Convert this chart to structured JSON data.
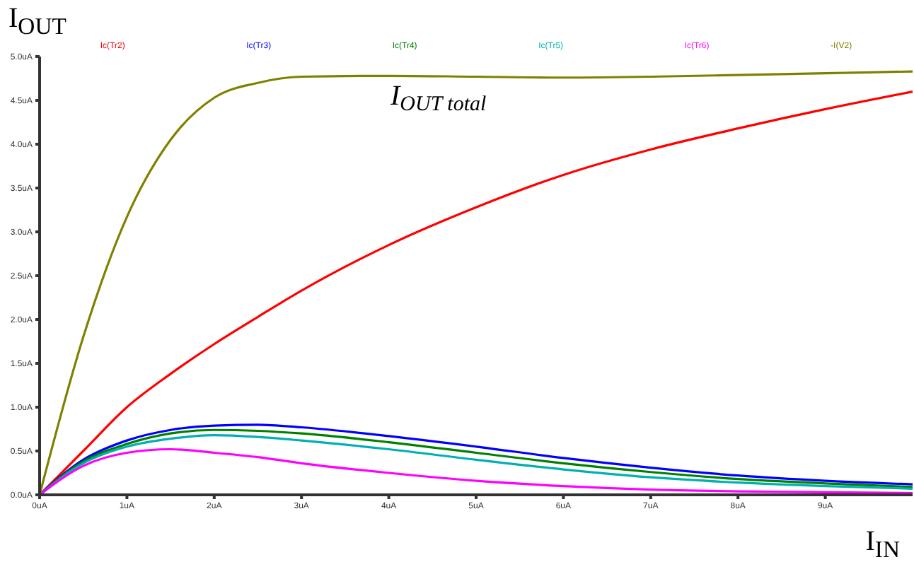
{
  "chart_data": {
    "type": "line",
    "ylabel": "I$_{OUT}$",
    "xlabel": "I$_{IN}$",
    "annotations": [
      "I$_{OUT total}$"
    ],
    "x": [
      0,
      0.5,
      1,
      1.5,
      2,
      2.5,
      3,
      4,
      5,
      6,
      7,
      8,
      9,
      10
    ],
    "series": [
      {
        "name": "Ic(Tr2)",
        "color": "#ff0000",
        "values": [
          0,
          0.5,
          1.0,
          1.38,
          1.72,
          2.03,
          2.33,
          2.85,
          3.28,
          3.65,
          3.94,
          4.18,
          4.4,
          4.6
        ]
      },
      {
        "name": "Ic(Tr3)",
        "color": "#0000ff",
        "values": [
          0,
          0.4,
          0.62,
          0.74,
          0.79,
          0.8,
          0.77,
          0.67,
          0.55,
          0.42,
          0.31,
          0.22,
          0.16,
          0.12
        ]
      },
      {
        "name": "Ic(Tr4)",
        "color": "#008000",
        "values": [
          0,
          0.38,
          0.58,
          0.7,
          0.74,
          0.73,
          0.7,
          0.6,
          0.48,
          0.36,
          0.26,
          0.18,
          0.13,
          0.09
        ]
      },
      {
        "name": "Ic(Tr5)",
        "color": "#00b0b0",
        "values": [
          0,
          0.36,
          0.55,
          0.64,
          0.68,
          0.66,
          0.62,
          0.52,
          0.4,
          0.29,
          0.2,
          0.14,
          0.1,
          0.07
        ]
      },
      {
        "name": "Ic(Tr6)",
        "color": "#ff00ff",
        "values": [
          0,
          0.33,
          0.48,
          0.52,
          0.48,
          0.43,
          0.36,
          0.25,
          0.16,
          0.1,
          0.06,
          0.04,
          0.03,
          0.02
        ]
      },
      {
        "name": "-I(V2)",
        "color": "#808000",
        "values": [
          0,
          1.8,
          3.17,
          4.05,
          4.53,
          4.7,
          4.77,
          4.78,
          4.77,
          4.76,
          4.77,
          4.79,
          4.81,
          4.83
        ]
      }
    ],
    "xlim": [
      0,
      10
    ],
    "xticks": [
      {
        "value": 0,
        "label": "0uA"
      },
      {
        "value": 1,
        "label": "1uA"
      },
      {
        "value": 2,
        "label": "2uA"
      },
      {
        "value": 3,
        "label": "3uA"
      },
      {
        "value": 4,
        "label": "4uA"
      },
      {
        "value": 5,
        "label": "5uA"
      },
      {
        "value": 6,
        "label": "6uA"
      },
      {
        "value": 7,
        "label": "7uA"
      },
      {
        "value": 8,
        "label": "8uA"
      },
      {
        "value": 9,
        "label": "9uA"
      }
    ],
    "ylim": [
      0,
      5
    ],
    "yticks": [
      {
        "value": 0,
        "label": "0.0uA"
      },
      {
        "value": 0.5,
        "label": "0.5uA"
      },
      {
        "value": 1,
        "label": "1.0uA"
      },
      {
        "value": 1.5,
        "label": "1.5uA"
      },
      {
        "value": 2,
        "label": "2.0uA"
      },
      {
        "value": 2.5,
        "label": "2.5uA"
      },
      {
        "value": 3,
        "label": "3.0uA"
      },
      {
        "value": 3.5,
        "label": "3.5uA"
      },
      {
        "value": 4,
        "label": "4.0uA"
      },
      {
        "value": 4.5,
        "label": "4.5uA"
      },
      {
        "value": 5,
        "label": "5.0uA"
      }
    ],
    "legend": "top",
    "grid": false,
    "marker": "none",
    "line_style": "solid"
  }
}
